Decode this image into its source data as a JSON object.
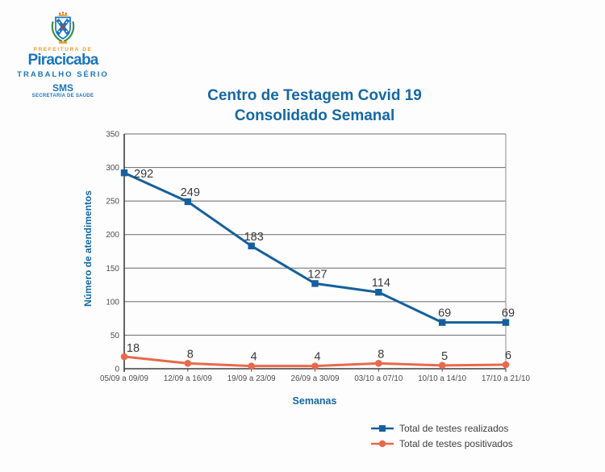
{
  "theme": {
    "background": "#fdfdfd",
    "title_blue": "#1568a3",
    "logo_blue": "#1b75bc",
    "logo_orange": "#f09b2e",
    "axis_text": "#4d4d4d",
    "data_label": "#3a3a3a",
    "grid": "#6a6a6a",
    "axis": "#3f3f3f",
    "right_border": "#a0a0a0",
    "legend_text": "#3f3f3f"
  },
  "logo": {
    "prefeitura_de": "PREFEITURA DE",
    "city": "Piracicaba",
    "tagline": "TRABALHO SÉRIO",
    "sms": "SMS",
    "secretaria": "SECRETARIA DE SAÚDE"
  },
  "title": {
    "line1": "Centro de Testagem Covid 19",
    "line2": "Consolidado Semanal"
  },
  "chart_data": {
    "type": "line",
    "title": "Centro de Testagem Covid 19 - Consolidado Semanal",
    "categories": [
      "05/09 a 09/09",
      "12/09 a 16/09",
      "19/09 a 23/09",
      "26/09 a 30/09",
      "03/10 a 07/10",
      "10/10 a 14/10",
      "17/10 a 21/10"
    ],
    "series": [
      {
        "name": "Total de testes realizados",
        "marker": "square",
        "color": "#15609c",
        "values": [
          292,
          249,
          183,
          127,
          114,
          69,
          69
        ]
      },
      {
        "name": "Total de testes positivados",
        "marker": "circle",
        "color": "#e8694b",
        "values": [
          18,
          8,
          4,
          4,
          8,
          5,
          6
        ]
      }
    ],
    "xlabel": "Semanas",
    "ylabel": "Número de atendimentos",
    "ylim": [
      0,
      350
    ],
    "ytick_step": 50,
    "grid": true,
    "data_labels": true,
    "legend_position": "bottom-right"
  }
}
